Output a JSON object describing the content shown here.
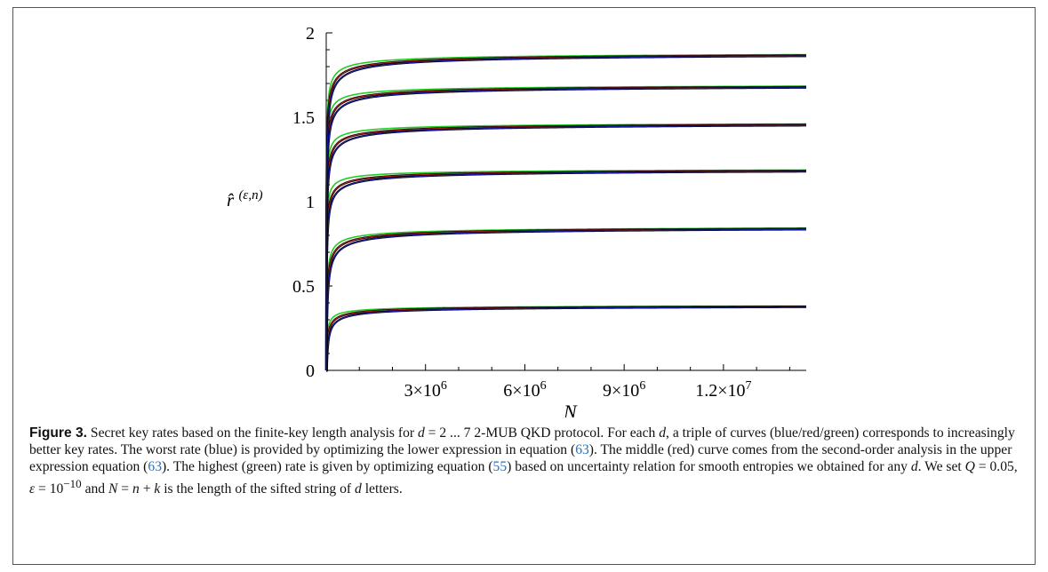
{
  "chart_data": {
    "type": "line",
    "xlabel": "N",
    "ylabel": "r̂(ε,n)",
    "xlim": [
      0,
      14500000
    ],
    "ylim": [
      0,
      2
    ],
    "x_ticks": [
      3000000,
      6000000,
      9000000,
      12000000
    ],
    "x_tick_labels": [
      "3×10",
      "6×10",
      "9×10",
      "1.2×10"
    ],
    "x_tick_exponent": "6",
    "x_tick_exponent_last": "7",
    "y_ticks": [
      0,
      0.5,
      1,
      1.5,
      2
    ],
    "y_tick_labels": [
      "0",
      "0.5",
      "1",
      "1.5",
      "2"
    ],
    "grid": false,
    "series_colors": {
      "blue": "#1a1a9c",
      "red": "#b02020",
      "green": "#22cc22",
      "outline": "#000000"
    },
    "groups": [
      {
        "d": 2,
        "asymptote": 0.39,
        "blue_end": 0.375,
        "red_end": 0.378,
        "green_end": 0.381
      },
      {
        "d": 3,
        "asymptote": 0.86,
        "blue_end": 0.835,
        "red_end": 0.839,
        "green_end": 0.843
      },
      {
        "d": 4,
        "asymptote": 1.2,
        "blue_end": 1.178,
        "red_end": 1.182,
        "green_end": 1.187
      },
      {
        "d": 5,
        "asymptote": 1.475,
        "blue_end": 1.451,
        "red_end": 1.455,
        "green_end": 1.46
      },
      {
        "d": 6,
        "asymptote": 1.7,
        "blue_end": 1.675,
        "red_end": 1.679,
        "green_end": 1.684
      },
      {
        "d": 7,
        "asymptote": 1.89,
        "blue_end": 1.862,
        "red_end": 1.866,
        "green_end": 1.871
      }
    ]
  },
  "caption": {
    "label": "Figure 3.",
    "p1": " Secret key rates based on the finite-key length analysis for ",
    "d_eq": "d",
    "p1b": " = 2 ... 7 2-MUB QKD protocol. For each ",
    "d2": "d",
    "p2": ", a triple of curves (blue/red/green) corresponds to increasingly better key rates. The worst rate (blue) is provided by optimizing the lower expression in equation (",
    "ref1": "63",
    "p3": "). The middle (red) curve comes from the second-order analysis in the upper expression  equation (",
    "ref2": "63",
    "p4": "). The highest (green) rate is given by optimizing equation (",
    "ref3": "55",
    "p5": ") based on uncertainty relation for smooth entropies we obtained for any ",
    "d3": "d",
    "p6": ". We set ",
    "Q": "Q",
    "p7": " = 0.05, ",
    "eps": "ε",
    "p8": " = 10",
    "exp": "−10",
    "p9": " and ",
    "Nn": "N",
    "p10": " = ",
    "n": "n",
    "p11": " + ",
    "k": "k",
    "p12": " is the length of the sifted string of ",
    "d4": "d",
    "p13": " letters."
  }
}
